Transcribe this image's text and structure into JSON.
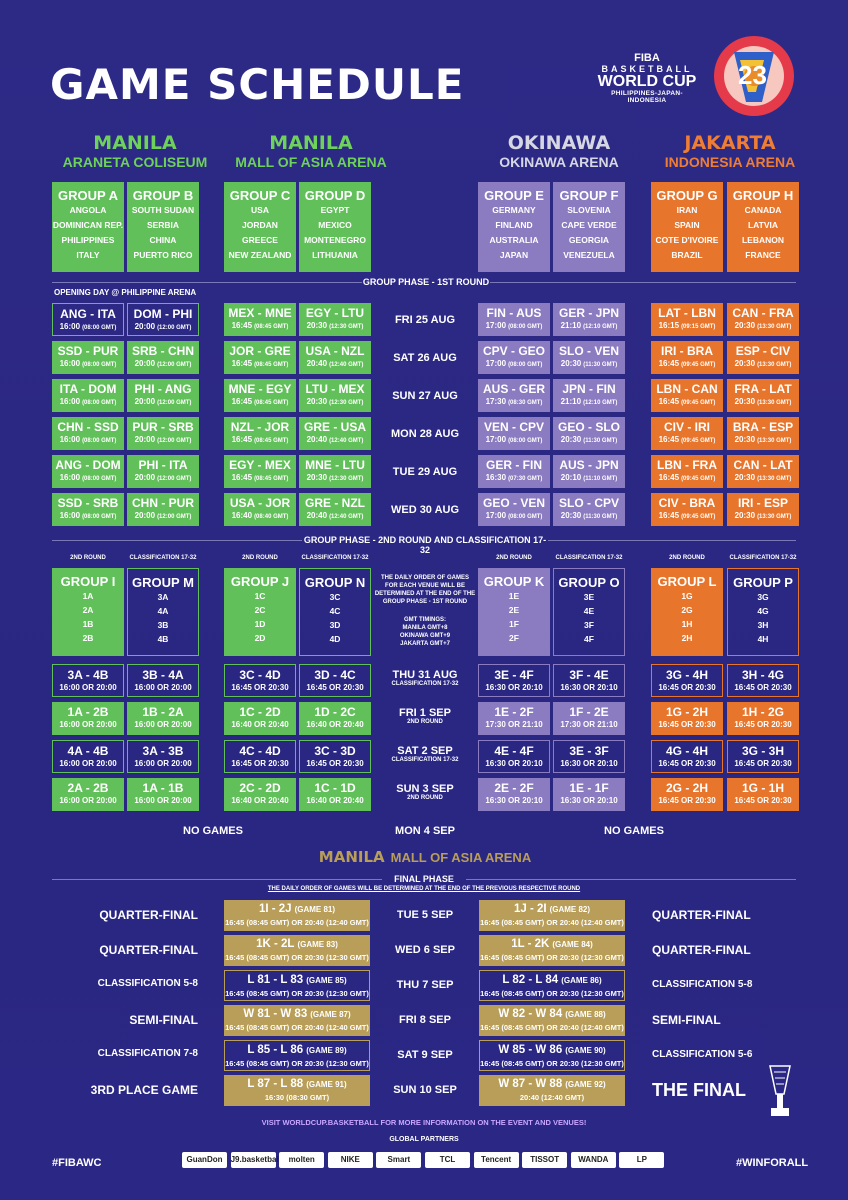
{
  "title": "GAME SCHEDULE",
  "logo": {
    "org": "FIBA",
    "line1": "BASKETBALL",
    "line2": "WORLD CUP",
    "line3": "PHILIPPINES-JAPAN-INDONESIA",
    "mark": "23"
  },
  "venues": [
    {
      "city": "MANILA",
      "arena": "ARANETA COLISEUM"
    },
    {
      "city": "MANILA",
      "arena": "MALL OF ASIA ARENA"
    },
    {
      "city": "OKINAWA",
      "arena": "OKINAWA ARENA"
    },
    {
      "city": "JAKARTA",
      "arena": "INDONESIA ARENA"
    }
  ],
  "groups": [
    {
      "name": "GROUP A",
      "teams": [
        "ANGOLA",
        "DOMINICAN REP.",
        "PHILIPPINES",
        "ITALY"
      ]
    },
    {
      "name": "GROUP B",
      "teams": [
        "SOUTH SUDAN",
        "SERBIA",
        "CHINA",
        "PUERTO RICO"
      ]
    },
    {
      "name": "GROUP C",
      "teams": [
        "USA",
        "JORDAN",
        "GREECE",
        "NEW ZEALAND"
      ]
    },
    {
      "name": "GROUP D",
      "teams": [
        "EGYPT",
        "MEXICO",
        "MONTENEGRO",
        "LITHUANIA"
      ]
    },
    {
      "name": "GROUP E",
      "teams": [
        "GERMANY",
        "FINLAND",
        "AUSTRALIA",
        "JAPAN"
      ]
    },
    {
      "name": "GROUP F",
      "teams": [
        "SLOVENIA",
        "CAPE VERDE",
        "GEORGIA",
        "VENEZUELA"
      ]
    },
    {
      "name": "GROUP G",
      "teams": [
        "IRAN",
        "SPAIN",
        "COTE D'IVOIRE",
        "BRAZIL"
      ]
    },
    {
      "name": "GROUP H",
      "teams": [
        "CANADA",
        "LATVIA",
        "LEBANON",
        "FRANCE"
      ]
    }
  ],
  "round1": {
    "header": "GROUP PHASE - 1ST ROUND",
    "opening": "OPENING DAY @ PHILIPPINE ARENA",
    "days": [
      "FRI 25 AUG",
      "SAT 26 AUG",
      "SUN 27 AUG",
      "MON 28 AUG",
      "TUE 29 AUG",
      "WED 30 AUG"
    ],
    "cols": [
      [
        [
          "ANG - ITA",
          "16:00",
          "(08:00 GMT)"
        ],
        [
          "SSD - PUR",
          "16:00",
          "(08:00 GMT)"
        ],
        [
          "ITA - DOM",
          "16:00",
          "(08:00 GMT)"
        ],
        [
          "CHN - SSD",
          "16:00",
          "(08:00 GMT)"
        ],
        [
          "ANG - DOM",
          "16:00",
          "(08:00 GMT)"
        ],
        [
          "SSD - SRB",
          "16:00",
          "(08:00 GMT)"
        ]
      ],
      [
        [
          "DOM - PHI",
          "20:00",
          "(12:00 GMT)"
        ],
        [
          "SRB - CHN",
          "20:00",
          "(12:00 GMT)"
        ],
        [
          "PHI - ANG",
          "20:00",
          "(12:00 GMT)"
        ],
        [
          "PUR - SRB",
          "20:00",
          "(12:00 GMT)"
        ],
        [
          "PHI - ITA",
          "20:00",
          "(12:00 GMT)"
        ],
        [
          "CHN - PUR",
          "20:00",
          "(12:00 GMT)"
        ]
      ],
      [
        [
          "MEX - MNE",
          "16:45",
          "(08:45 GMT)"
        ],
        [
          "JOR - GRE",
          "16:45",
          "(08:45 GMT)"
        ],
        [
          "MNE - EGY",
          "16:45",
          "(08:45 GMT)"
        ],
        [
          "NZL - JOR",
          "16:45",
          "(08:45 GMT)"
        ],
        [
          "EGY - MEX",
          "16:45",
          "(08:45 GMT)"
        ],
        [
          "USA - JOR",
          "16:40",
          "(08:40 GMT)"
        ]
      ],
      [
        [
          "EGY - LTU",
          "20:30",
          "(12:30 GMT)"
        ],
        [
          "USA - NZL",
          "20:40",
          "(12:40 GMT)"
        ],
        [
          "LTU - MEX",
          "20:30",
          "(12:30 GMT)"
        ],
        [
          "GRE - USA",
          "20:40",
          "(12:40 GMT)"
        ],
        [
          "MNE - LTU",
          "20:30",
          "(12:30 GMT)"
        ],
        [
          "GRE - NZL",
          "20:40",
          "(12:40 GMT)"
        ]
      ],
      [
        [
          "FIN - AUS",
          "17:00",
          "(08:00 GMT)"
        ],
        [
          "CPV - GEO",
          "17:00",
          "(08:00 GMT)"
        ],
        [
          "AUS - GER",
          "17:30",
          "(08:30 GMT)"
        ],
        [
          "VEN - CPV",
          "17:00",
          "(08:00 GMT)"
        ],
        [
          "GER - FIN",
          "16:30",
          "(07:30 GMT)"
        ],
        [
          "GEO - VEN",
          "17:00",
          "(08:00 GMT)"
        ]
      ],
      [
        [
          "GER - JPN",
          "21:10",
          "(12:10 GMT)"
        ],
        [
          "SLO - VEN",
          "20:30",
          "(11:30 GMT)"
        ],
        [
          "JPN - FIN",
          "21:10",
          "(12:10 GMT)"
        ],
        [
          "GEO - SLO",
          "20:30",
          "(11:30 GMT)"
        ],
        [
          "AUS - JPN",
          "20:10",
          "(11:10 GMT)"
        ],
        [
          "SLO - CPV",
          "20:30",
          "(11:30 GMT)"
        ]
      ],
      [
        [
          "LAT - LBN",
          "16:15",
          "(09:15 GMT)"
        ],
        [
          "IRI - BRA",
          "16:45",
          "(09:45 GMT)"
        ],
        [
          "LBN - CAN",
          "16:45",
          "(09:45 GMT)"
        ],
        [
          "CIV - IRI",
          "16:45",
          "(09:45 GMT)"
        ],
        [
          "LBN - FRA",
          "16:45",
          "(09:45 GMT)"
        ],
        [
          "CIV - BRA",
          "16:45",
          "(09:45 GMT)"
        ]
      ],
      [
        [
          "CAN - FRA",
          "20:30",
          "(13:30 GMT)"
        ],
        [
          "ESP - CIV",
          "20:30",
          "(13:30 GMT)"
        ],
        [
          "FRA - LAT",
          "20:30",
          "(13:30 GMT)"
        ],
        [
          "BRA - ESP",
          "20:30",
          "(13:30 GMT)"
        ],
        [
          "CAN - LAT",
          "20:30",
          "(13:30 GMT)"
        ],
        [
          "IRI - ESP",
          "20:30",
          "(13:30 GMT)"
        ]
      ]
    ]
  },
  "round2": {
    "header": "GROUP PHASE - 2ND ROUND AND CLASSIFICATION 17-32",
    "col_labels": [
      "2ND ROUND",
      "CLASSIFICATION 17-32",
      "2ND ROUND",
      "CLASSIFICATION 17-32",
      "2ND ROUND",
      "CLASSIFICATION 17-32",
      "2ND ROUND",
      "CLASSIFICATION 17-32"
    ],
    "groups": [
      {
        "name": "GROUP I",
        "teams": [
          "1A",
          "2A",
          "1B",
          "2B"
        ]
      },
      {
        "name": "GROUP M",
        "teams": [
          "3A",
          "4A",
          "3B",
          "4B"
        ]
      },
      {
        "name": "GROUP J",
        "teams": [
          "1C",
          "2C",
          "1D",
          "2D"
        ]
      },
      {
        "name": "GROUP N",
        "teams": [
          "3C",
          "4C",
          "3D",
          "4D"
        ]
      },
      {
        "name": "GROUP K",
        "teams": [
          "1E",
          "2E",
          "1F",
          "2F"
        ]
      },
      {
        "name": "GROUP O",
        "teams": [
          "3E",
          "4E",
          "3F",
          "4F"
        ]
      },
      {
        "name": "GROUP L",
        "teams": [
          "1G",
          "2G",
          "1H",
          "2H"
        ]
      },
      {
        "name": "GROUP P",
        "teams": [
          "3G",
          "4G",
          "3H",
          "4H"
        ]
      }
    ],
    "note1": "THE DAILY ORDER OF GAMES FOR EACH VENUE WILL BE DETERMINED AT THE END OF THE GROUP PHASE - 1ST ROUND",
    "note2": "GMT TIMINGS:",
    "note3": "MANILA GMT+8",
    "note4": "OKINAWA GMT+9",
    "note5": "JAKARTA GMT+7",
    "days": [
      [
        "THU 31 AUG",
        "CLASSIFICATION 17-32"
      ],
      [
        "FRI 1 SEP",
        "2ND ROUND"
      ],
      [
        "SAT 2 SEP",
        "CLASSIFICATION 17-32"
      ],
      [
        "SUN 3 SEP",
        "2ND ROUND"
      ]
    ],
    "cols": [
      [
        [
          "3A - 4B",
          "16:00 OR 20:00"
        ],
        [
          "1A - 2B",
          "16:00 OR 20:00"
        ],
        [
          "4A - 4B",
          "16:00 OR 20:00"
        ],
        [
          "2A - 2B",
          "16:00 OR 20:00"
        ]
      ],
      [
        [
          "3B - 4A",
          "16:00 OR 20:00"
        ],
        [
          "1B - 2A",
          "16:00 OR 20:00"
        ],
        [
          "3A - 3B",
          "16:00 OR 20:00"
        ],
        [
          "1A - 1B",
          "16:00 OR 20:00"
        ]
      ],
      [
        [
          "3C - 4D",
          "16:45 OR 20:30"
        ],
        [
          "1C - 2D",
          "16:40 OR 20:40"
        ],
        [
          "4C - 4D",
          "16:45 OR 20:30"
        ],
        [
          "2C - 2D",
          "16:40 OR 20:40"
        ]
      ],
      [
        [
          "3D - 4C",
          "16:45 OR 20:30"
        ],
        [
          "1D - 2C",
          "16:40 OR 20:40"
        ],
        [
          "3C - 3D",
          "16:45 OR 20:30"
        ],
        [
          "1C - 1D",
          "16:40 OR 20:40"
        ]
      ],
      [
        [
          "3E - 4F",
          "16:30 OR 20:10"
        ],
        [
          "1E - 2F",
          "17:30 OR 21:10"
        ],
        [
          "4E - 4F",
          "16:30 OR 20:10"
        ],
        [
          "2E - 2F",
          "16:30 OR 20:10"
        ]
      ],
      [
        [
          "3F - 4E",
          "16:30 OR 20:10"
        ],
        [
          "1F - 2E",
          "17:30 OR 21:10"
        ],
        [
          "3E - 3F",
          "16:30 OR 20:10"
        ],
        [
          "1E - 1F",
          "16:30 OR 20:10"
        ]
      ],
      [
        [
          "3G - 4H",
          "16:45 OR 20:30"
        ],
        [
          "1G - 2H",
          "16:45 OR 20:30"
        ],
        [
          "4G - 4H",
          "16:45 OR 20:30"
        ],
        [
          "2G - 2H",
          "16:45 OR 20:30"
        ]
      ],
      [
        [
          "3H - 4G",
          "16:45 OR 20:30"
        ],
        [
          "1H - 2G",
          "16:45 OR 20:30"
        ],
        [
          "3G - 3H",
          "16:45 OR 20:30"
        ],
        [
          "1G - 1H",
          "16:45 OR 20:30"
        ]
      ]
    ],
    "no_games": "NO GAMES",
    "mon": "MON 4 SEP"
  },
  "final": {
    "venue_city": "MANILA",
    "venue_arena": "MALL OF ASIA ARENA",
    "phase": "FINAL PHASE",
    "note": "THE DAILY ORDER OF GAMES WILL BE DETERMINED AT THE END OF THE PREVIOUS RESPECTIVE ROUND",
    "rows": [
      {
        "left": "QUARTER-FINAL",
        "day": "TUE 5 SEP",
        "right": "QUARTER-FINAL",
        "g1": "1I - 2J",
        "n1": "(GAME 81)",
        "t1": "16:45 (08:45 GMT) OR 20:40 (12:40 GMT)",
        "g2": "1J - 2I",
        "n2": "(GAME 82)",
        "t2": "16:45 (08:45 GMT) OR 20:40 (12:40 GMT)",
        "s": "gold"
      },
      {
        "left": "QUARTER-FINAL",
        "day": "WED 6 SEP",
        "right": "QUARTER-FINAL",
        "g1": "1K - 2L",
        "n1": "(GAME 83)",
        "t1": "16:45 (08:45 GMT) OR 20:30 (12:30 GMT)",
        "g2": "1L - 2K",
        "n2": "(GAME 84)",
        "t2": "16:45 (08:45 GMT) OR 20:30 (12:30 GMT)",
        "s": "gold"
      },
      {
        "left": "CLASSIFICATION 5-8",
        "day": "THU 7 SEP",
        "right": "CLASSIFICATION 5-8",
        "g1": "L 81 - L 83",
        "n1": "(GAME 85)",
        "t1": "16:45 (08:45 GMT) OR 20:30 (12:30 GMT)",
        "g2": "L 82 - L 84",
        "n2": "(GAME 86)",
        "t2": "16:45 (08:45 GMT) OR 20:30 (12:30 GMT)",
        "s": "out"
      },
      {
        "left": "SEMI-FINAL",
        "day": "FRI 8 SEP",
        "right": "SEMI-FINAL",
        "g1": "W 81 - W 83",
        "n1": "(GAME 87)",
        "t1": "16:45 (08:45 GMT) OR 20:40 (12:40 GMT)",
        "g2": "W 82 - W 84",
        "n2": "(GAME 88)",
        "t2": "16:45 (08:45 GMT) OR 20:40 (12:40 GMT)",
        "s": "gold"
      },
      {
        "left": "CLASSIFICATION 7-8",
        "day": "SAT 9 SEP",
        "right": "CLASSIFICATION 5-6",
        "g1": "L 85 - L 86",
        "n1": "(GAME 89)",
        "t1": "16:45 (08:45 GMT) OR 20:30 (12:30 GMT)",
        "g2": "W 85 - W 86",
        "n2": "(GAME 90)",
        "t2": "16:45 (08:45 GMT) OR 20:30 (12:30 GMT)",
        "s": "out"
      },
      {
        "left": "3RD PLACE GAME",
        "day": "SUN 10 SEP",
        "right": "THE FINAL",
        "g1": "L 87 - L 88",
        "n1": "(GAME 91)",
        "t1": "16:30 (08:30 GMT)",
        "g2": "W 87 - W 88",
        "n2": "(GAME 92)",
        "t2": "20:40 (12:40 GMT)",
        "s": "gold"
      }
    ]
  },
  "footer": {
    "visit": "VISIT WORLDCUP.BASKETBALL FOR MORE INFORMATION ON THE EVENT AND VENUES!",
    "partners_label": "GLOBAL PARTNERS",
    "left": "#FIBAWC",
    "right": "#WINFORALL",
    "partners": [
      "GuanDon",
      "J9.basketball",
      "molten",
      "NIKE",
      "Smart",
      "TCL",
      "Tencent",
      "TISSOT",
      "WANDA",
      "LP"
    ]
  }
}
